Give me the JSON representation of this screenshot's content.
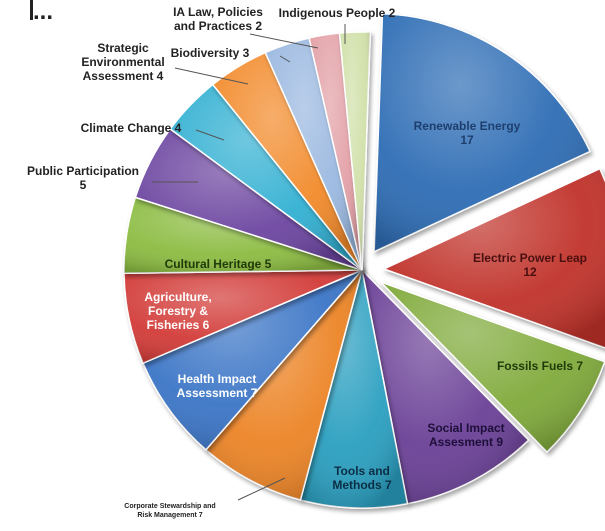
{
  "corner_text": "...",
  "chart_data": {
    "type": "pie",
    "style": "3d-exploded",
    "legend": "none",
    "slices": [
      {
        "label_lines": [
          "Renewable Energy",
          "17"
        ],
        "value": 17,
        "color": "#2e6db5",
        "explode": true
      },
      {
        "label_lines": [
          "Electric Power Leap",
          "12"
        ],
        "value": 12,
        "color": "#c0302c",
        "explode": true
      },
      {
        "label_lines": [
          "Fossils Fuels 7"
        ],
        "value": 7,
        "color": "#80aa3a",
        "explode": true
      },
      {
        "label_lines": [
          "Social Impact",
          "Assesment 9"
        ],
        "value": 9,
        "color": "#6a3f96",
        "explode": false
      },
      {
        "label_lines": [
          "Tools and",
          "Methods 7"
        ],
        "value": 7,
        "color": "#2a9fc0",
        "explode": false
      },
      {
        "label_lines": [
          "Corporate Stewardship and",
          "Risk Management 7"
        ],
        "value": 7,
        "color": "#ec8428",
        "explode": false
      },
      {
        "label_lines": [
          "Health Impact",
          "Assessment 7"
        ],
        "value": 7,
        "color": "#3a74c6",
        "explode": false
      },
      {
        "label_lines": [
          "Agriculture,",
          "Forestry &",
          "Fisheries 6"
        ],
        "value": 6,
        "color": "#d23a38",
        "explode": false
      },
      {
        "label_lines": [
          "Cultural Heritage 5"
        ],
        "value": 5,
        "color": "#8cbc42",
        "explode": false
      },
      {
        "label_lines": [
          "Public Participation",
          "5"
        ],
        "value": 5,
        "color": "#6c44a0",
        "explode": false
      },
      {
        "label_lines": [
          "Climate Change 4"
        ],
        "value": 4,
        "color": "#30b0d2",
        "explode": false
      },
      {
        "label_lines": [
          "Strategic",
          "Environmental",
          "Assessment 4"
        ],
        "value": 4,
        "color": "#f28a2a",
        "explode": false
      },
      {
        "label_lines": [
          "Biodiversity 3"
        ],
        "value": 3,
        "color": "#9ab8e0",
        "explode": false
      },
      {
        "label_lines": [
          "IA Law, Policies",
          "and Practices 2"
        ],
        "value": 2,
        "color": "#e2a0a6",
        "explode": false
      },
      {
        "label_lines": [
          "Indigenous People 2"
        ],
        "value": 2,
        "color": "#d0e0a8",
        "explode": false
      }
    ]
  }
}
